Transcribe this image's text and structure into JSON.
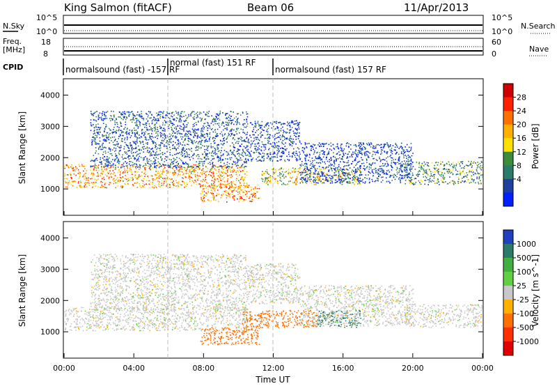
{
  "header": {
    "station": "King Salmon (fitACF)",
    "beam": "Beam 06",
    "date": "11/Apr/2013"
  },
  "top_panels": {
    "nsky": {
      "label": "N.Sky",
      "ticks": [
        "10^5",
        "10^0"
      ]
    },
    "nsearch": {
      "label": "N.Search",
      "ticks": [
        "10^5",
        "10^0"
      ]
    },
    "freq": {
      "label_line1": "Freq.",
      "label_line2": "[MHz]",
      "ticks": [
        "18",
        "8"
      ]
    },
    "nave": {
      "label": "Nave",
      "ticks": [
        "60",
        "0"
      ]
    },
    "cpid": {
      "label": "CPID",
      "segments": [
        {
          "text": "normalsound (fast) -157 RF",
          "start_hour": 0.0
        },
        {
          "text": "normal (fast) 151 RF",
          "start_hour": 6.0
        },
        {
          "text": "normalsound (fast) 157 RF",
          "start_hour": 12.0
        }
      ]
    }
  },
  "chart_data": [
    {
      "type": "heatmap",
      "title": "",
      "xlabel": "",
      "ylabel": "Slant Range [km]",
      "xlim": [
        0,
        24
      ],
      "ylim": [
        180,
        4500
      ],
      "yticks": [
        1000,
        2000,
        3000,
        4000
      ],
      "colorbar": {
        "label": "Power [dB]",
        "ticks": [
          "28",
          "24",
          "20",
          "16",
          "12",
          "8",
          "4"
        ],
        "colors": [
          "#d00000",
          "#ff2000",
          "#ff7000",
          "#ffb000",
          "#ffe000",
          "#3c8c3c",
          "#2c7a6a",
          "#2040a0",
          "#0020ff"
        ]
      },
      "echo_regions": [
        {
          "name": "main band",
          "start_hour": 0.0,
          "end_hour": 10.5,
          "range_km": [
            1050,
            1800
          ],
          "power_db": 22
        },
        {
          "name": "upper scatter",
          "start_hour": 1.5,
          "end_hour": 10.5,
          "range_km": [
            1700,
            3500
          ],
          "power_db": 8
        },
        {
          "name": "lower band",
          "start_hour": 7.8,
          "end_hour": 11.2,
          "range_km": [
            600,
            1150
          ],
          "power_db": 24
        },
        {
          "name": "rising arc",
          "start_hour": 10.5,
          "end_hour": 13.5,
          "range_km": [
            1900,
            3200
          ],
          "power_db": 6
        },
        {
          "name": "midday band",
          "start_hour": 11.3,
          "end_hour": 17.0,
          "range_km": [
            1150,
            1700
          ],
          "power_db": 18
        },
        {
          "name": "descending arc",
          "start_hour": 13.5,
          "end_hour": 20.0,
          "range_km": [
            1200,
            2500
          ],
          "power_db": 6
        },
        {
          "name": "evening band",
          "start_hour": 19.5,
          "end_hour": 24.0,
          "range_km": [
            1150,
            1900
          ],
          "power_db": 12
        }
      ]
    },
    {
      "type": "heatmap",
      "title": "",
      "xlabel": "Time UT",
      "ylabel": "Slant Range [km]",
      "xlim": [
        0,
        24
      ],
      "ylim": [
        180,
        4500
      ],
      "yticks": [
        1000,
        2000,
        3000,
        4000
      ],
      "xticks": [
        "00:00",
        "04:00",
        "08:00",
        "12:00",
        "16:00",
        "20:00",
        "00:00"
      ],
      "colorbar": {
        "label": "Velocity [m s^-1]",
        "ticks": [
          "1000",
          "500",
          "100",
          "25",
          "-25",
          "-100",
          "-500",
          "-1000"
        ],
        "colors": [
          "#2040c0",
          "#2c7a6a",
          "#40b040",
          "#60d040",
          "#c8c8c8",
          "#ffb000",
          "#ff7000",
          "#ff3000",
          "#e00000"
        ]
      },
      "echo_regions": [
        {
          "name": "main band",
          "start_hour": 0.0,
          "end_hour": 10.5,
          "range_km": [
            1050,
            1800
          ],
          "velocity": 0
        },
        {
          "name": "upper scatter",
          "start_hour": 1.5,
          "end_hour": 10.5,
          "range_km": [
            1700,
            3500
          ],
          "velocity": 0
        },
        {
          "name": "lower band",
          "start_hour": 7.8,
          "end_hour": 11.2,
          "range_km": [
            600,
            1150
          ],
          "velocity": -200
        },
        {
          "name": "rising arc",
          "start_hour": 10.5,
          "end_hour": 13.5,
          "range_km": [
            1900,
            3200
          ],
          "velocity": 0
        },
        {
          "name": "midday band west",
          "start_hour": 10.2,
          "end_hour": 14.5,
          "range_km": [
            1150,
            1700
          ],
          "velocity": -300
        },
        {
          "name": "midday band east",
          "start_hour": 14.5,
          "end_hour": 17.0,
          "range_km": [
            1150,
            1700
          ],
          "velocity": 150
        },
        {
          "name": "descending arc",
          "start_hour": 13.5,
          "end_hour": 20.0,
          "range_km": [
            1200,
            2500
          ],
          "velocity": 0
        },
        {
          "name": "evening band",
          "start_hour": 19.5,
          "end_hour": 24.0,
          "range_km": [
            1150,
            1900
          ],
          "velocity": 0
        }
      ]
    }
  ]
}
